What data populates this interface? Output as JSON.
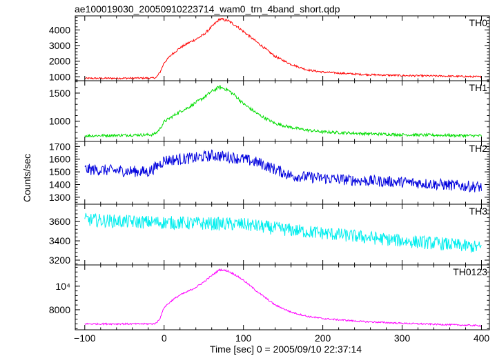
{
  "figure": {
    "title": "ae100019030_20050910223714_wam0_trn_4band_short.qdp",
    "xlabel": "Time [sec] 0 = 2005/09/10 22:37:14",
    "ylabel": "Counts/sec"
  },
  "chart_data": {
    "type": "line",
    "title": "ae100019030_20050910223714_wam0_trn_4band_short.qdp",
    "xlabel": "Time [sec] 0 = 2005/09/10 22:37:14",
    "ylabel": "Counts/sec",
    "xlim": [
      -112,
      410
    ],
    "x_ticks": [
      -100,
      0,
      100,
      200,
      300,
      400
    ],
    "x_tick_labels": [
      "−100",
      "0",
      "100",
      "200",
      "300",
      "400"
    ],
    "grid": false,
    "panels": [
      {
        "name": "TH0",
        "color": "#ff0000",
        "ylim": [
          750,
          4900
        ],
        "y_ticks": [
          1000,
          2000,
          3000,
          4000
        ],
        "y_tick_labels": [
          "1000",
          "2000",
          "3000",
          "4000"
        ],
        "x": [
          -100,
          -15,
          -10,
          -5,
          0,
          10,
          20,
          30,
          40,
          50,
          60,
          70,
          80,
          90,
          100,
          120,
          140,
          160,
          180,
          200,
          250,
          300,
          350,
          400
        ],
        "y": [
          900,
          920,
          950,
          1300,
          1900,
          2450,
          2850,
          3150,
          3400,
          3700,
          4200,
          4700,
          4600,
          4300,
          3900,
          3100,
          2300,
          1800,
          1450,
          1300,
          1150,
          1080,
          1050,
          1000
        ],
        "noise": 55
      },
      {
        "name": "TH1",
        "color": "#00dd00",
        "ylim": [
          640,
          1720
        ],
        "y_ticks": [
          1000,
          1500
        ],
        "y_tick_labels": [
          "1000",
          "1500"
        ],
        "x": [
          -100,
          -15,
          -10,
          -5,
          0,
          10,
          20,
          30,
          40,
          50,
          60,
          70,
          80,
          90,
          100,
          120,
          140,
          160,
          180,
          200,
          250,
          300,
          350,
          400
        ],
        "y": [
          740,
          760,
          790,
          870,
          990,
          1080,
          1170,
          1240,
          1330,
          1420,
          1530,
          1610,
          1560,
          1450,
          1310,
          1110,
          960,
          890,
          840,
          810,
          780,
          760,
          750,
          740
        ],
        "noise": 25
      },
      {
        "name": "TH2",
        "color": "#0000dd",
        "ylim": [
          1245,
          1740
        ],
        "y_ticks": [
          1300,
          1400,
          1500,
          1600,
          1700
        ],
        "y_tick_labels": [
          "1300",
          "1400",
          "1500",
          "1600",
          "1700"
        ],
        "x": [
          -100,
          -60,
          -20,
          -10,
          0,
          20,
          40,
          60,
          80,
          100,
          120,
          140,
          160,
          180,
          200,
          250,
          300,
          350,
          400
        ],
        "y": [
          1520,
          1510,
          1500,
          1540,
          1590,
          1600,
          1610,
          1630,
          1620,
          1600,
          1570,
          1520,
          1470,
          1460,
          1450,
          1430,
          1420,
          1400,
          1380
        ],
        "noise": 45
      },
      {
        "name": "TH3",
        "color": "#00eeee",
        "ylim": [
          3150,
          3780
        ],
        "y_ticks": [
          3200,
          3400,
          3600
        ],
        "y_tick_labels": [
          "3200",
          "3400",
          "3600"
        ],
        "x": [
          -100,
          -50,
          0,
          50,
          100,
          150,
          200,
          250,
          300,
          350,
          400
        ],
        "y": [
          3620,
          3600,
          3590,
          3580,
          3570,
          3520,
          3480,
          3440,
          3400,
          3370,
          3330
        ],
        "noise": 70
      },
      {
        "name": "TH0123",
        "color": "#ff00ff",
        "ylim": [
          6300,
          11800
        ],
        "y_ticks": [
          8000,
          10000
        ],
        "y_tick_labels": [
          "8000",
          "10⁴"
        ],
        "x": [
          -100,
          -15,
          -10,
          -5,
          0,
          10,
          20,
          30,
          40,
          50,
          60,
          70,
          80,
          90,
          100,
          120,
          140,
          160,
          180,
          200,
          250,
          300,
          350,
          400
        ],
        "y": [
          6800,
          6800,
          6850,
          7300,
          8200,
          8800,
          9250,
          9550,
          9900,
          10350,
          10900,
          11400,
          11300,
          10950,
          10500,
          9400,
          8400,
          7800,
          7450,
          7250,
          7000,
          6850,
          6750,
          6650
        ],
        "noise": 65
      }
    ]
  }
}
